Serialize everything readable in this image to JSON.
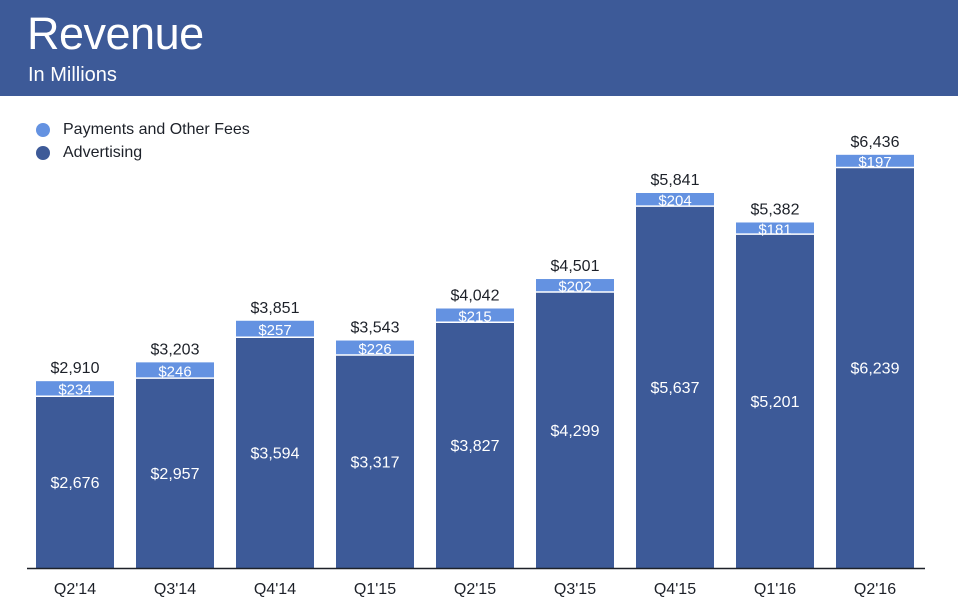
{
  "header": {
    "title": "Revenue",
    "subtitle": "In Millions",
    "background": "#3d5a98"
  },
  "legend": [
    {
      "label": "Payments and Other Fees",
      "color": "#6492e1"
    },
    {
      "label": "Advertising",
      "color": "#3d5a98"
    }
  ],
  "chart_data": {
    "type": "bar",
    "stacked": true,
    "categories": [
      "Q2'14",
      "Q3'14",
      "Q4'14",
      "Q1'15",
      "Q2'15",
      "Q3'15",
      "Q4'15",
      "Q1'16",
      "Q2'16"
    ],
    "series": [
      {
        "name": "Advertising",
        "color": "#3d5a98",
        "values": [
          2676,
          2957,
          3594,
          3317,
          3827,
          4299,
          5637,
          5201,
          6239
        ],
        "labels": [
          "$2,676",
          "$2,957",
          "$3,594",
          "$3,317",
          "$3,827",
          "$4,299",
          "$5,637",
          "$5,201",
          "$6,239"
        ]
      },
      {
        "name": "Payments and Other Fees",
        "color": "#6492e1",
        "values": [
          234,
          246,
          257,
          226,
          215,
          202,
          204,
          181,
          197
        ],
        "labels": [
          "$234",
          "$246",
          "$257",
          "$226",
          "$215",
          "$202",
          "$204",
          "$181",
          "$197"
        ]
      }
    ],
    "totals": [
      2910,
      3203,
      3851,
      3543,
      4042,
      4501,
      5841,
      5382,
      6436
    ],
    "total_labels": [
      "$2,910",
      "$3,203",
      "$3,851",
      "$3,543",
      "$4,042",
      "$4,501",
      "$5,841",
      "$5,382",
      "$6,436"
    ],
    "title": "Revenue",
    "subtitle": "In Millions",
    "xlabel": "",
    "ylabel": "",
    "ylim": [
      0,
      6436
    ],
    "grid": false,
    "legend_position": "top-left"
  }
}
